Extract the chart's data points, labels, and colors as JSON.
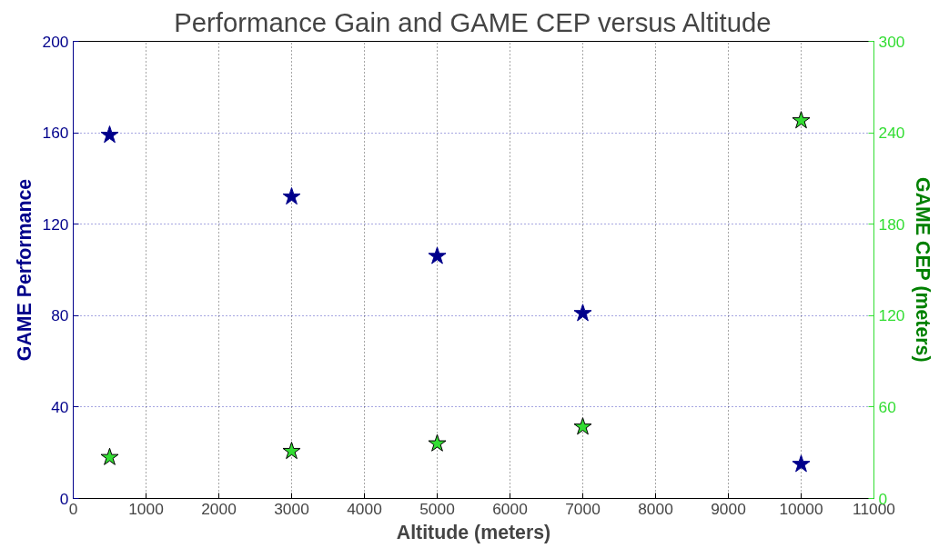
{
  "chart_data": {
    "type": "scatter",
    "title": "Performance Gain and GAME CEP versus Altitude",
    "xlabel": "Altitude (meters)",
    "ylabel": "GAME Performance",
    "y2label": "GAME CEP (meters)",
    "x": [
      500,
      3000,
      5000,
      7000,
      10000
    ],
    "series": [
      {
        "color": "#00008b",
        "values": [
          159,
          132,
          106,
          81,
          15
        ]
      },
      {
        "color": "#33dd33",
        "axis": "y2",
        "values": [
          27,
          31,
          36,
          47,
          248
        ]
      }
    ],
    "xlim": [
      0,
      11000
    ],
    "xticks": [
      0,
      1000,
      2000,
      3000,
      4000,
      5000,
      6000,
      7000,
      8000,
      9000,
      10000,
      11000
    ],
    "ylim": [
      0,
      200
    ],
    "yticks": [
      0,
      40,
      80,
      120,
      160,
      200
    ],
    "y2lim": [
      0,
      300
    ],
    "y2ticks": [
      0,
      60,
      120,
      180,
      240,
      300
    ],
    "grid": true,
    "marker": "star"
  }
}
